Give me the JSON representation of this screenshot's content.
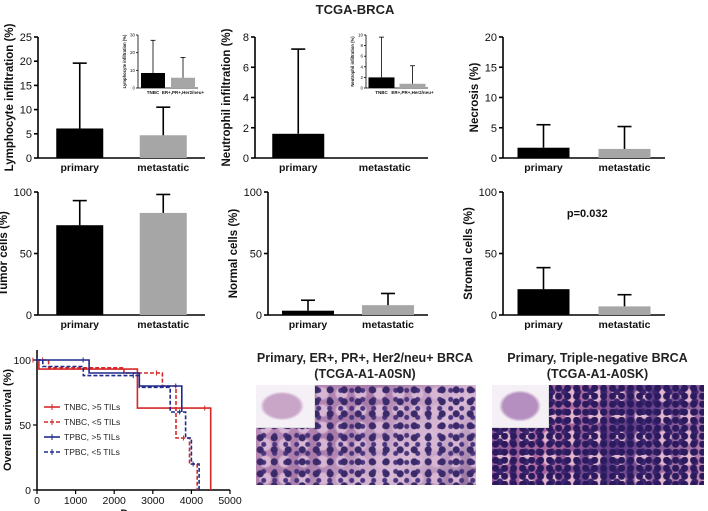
{
  "figure_title": "TCGA-BRCA",
  "chart_data": [
    {
      "type": "bar",
      "title": "",
      "ylabel": "Lymphocyte infiltration (%)",
      "xlabel": "",
      "categories": [
        "primary",
        "metastatic"
      ],
      "values": [
        6.1,
        4.7
      ],
      "errors": [
        13.5,
        5.8
      ],
      "colors": [
        "#000000",
        "#a6a6a6"
      ],
      "ylim": [
        0,
        25
      ],
      "yticks": [
        0,
        5,
        10,
        15,
        20,
        25
      ],
      "inset": {
        "type": "bar",
        "ylabel": "Lymphocyte infiltration (%)",
        "categories": [
          "TNBC",
          "ER+,PR+,Her2/neu+"
        ],
        "values": [
          8.5,
          5.8
        ],
        "errors": [
          18.5,
          11.5
        ],
        "colors": [
          "#000000",
          "#a6a6a6"
        ],
        "ylim": [
          0,
          30
        ],
        "yticks": [
          0,
          10,
          20,
          30
        ]
      }
    },
    {
      "type": "bar",
      "title": "",
      "ylabel": "Neutrophil infiltration (%)",
      "xlabel": "",
      "categories": [
        "primary",
        "metastatic"
      ],
      "values": [
        1.6,
        0
      ],
      "errors": [
        5.6,
        0
      ],
      "colors": [
        "#000000",
        "#a6a6a6"
      ],
      "ylim": [
        0,
        8
      ],
      "yticks": [
        0,
        2,
        4,
        6,
        8
      ],
      "inset": {
        "type": "bar",
        "ylabel": "Neutrophil infiltration (%)",
        "categories": [
          "TNBC",
          "ER+,PR+,Her2/neu+"
        ],
        "values": [
          2.0,
          0.8
        ],
        "errors": [
          7.6,
          3.4
        ],
        "colors": [
          "#000000",
          "#a6a6a6"
        ],
        "ylim": [
          0,
          10
        ],
        "yticks": [
          0,
          2,
          4,
          6,
          8,
          10
        ]
      }
    },
    {
      "type": "bar",
      "title": "",
      "ylabel": "Necrosis (%)",
      "xlabel": "",
      "categories": [
        "primary",
        "metastatic"
      ],
      "values": [
        1.7,
        1.5
      ],
      "errors": [
        3.8,
        3.7
      ],
      "colors": [
        "#000000",
        "#a6a6a6"
      ],
      "ylim": [
        0,
        20
      ],
      "yticks": [
        0,
        5,
        10,
        15,
        20
      ]
    },
    {
      "type": "bar",
      "title": "",
      "ylabel": "Tumor cells (%)",
      "xlabel": "",
      "categories": [
        "primary",
        "metastatic"
      ],
      "values": [
        73,
        83
      ],
      "errors": [
        20,
        15
      ],
      "colors": [
        "#000000",
        "#a6a6a6"
      ],
      "ylim": [
        0,
        100
      ],
      "yticks": [
        0,
        50,
        100
      ]
    },
    {
      "type": "bar",
      "title": "",
      "ylabel": "Normal cells (%)",
      "xlabel": "",
      "categories": [
        "primary",
        "metastatic"
      ],
      "values": [
        3.5,
        8
      ],
      "errors": [
        8.5,
        9.5
      ],
      "colors": [
        "#000000",
        "#a6a6a6"
      ],
      "ylim": [
        0,
        100
      ],
      "yticks": [
        0,
        50,
        100
      ]
    },
    {
      "type": "bar",
      "title": "",
      "ylabel": "Stromal cells (%)",
      "xlabel": "",
      "categories": [
        "primary",
        "metastatic"
      ],
      "values": [
        21,
        7
      ],
      "errors": [
        17.5,
        9.5
      ],
      "colors": [
        "#000000",
        "#a6a6a6"
      ],
      "ylim": [
        0,
        100
      ],
      "yticks": [
        0,
        50,
        100
      ],
      "annotation": "p=0.032"
    },
    {
      "type": "line",
      "title": "",
      "xlabel": "Days",
      "ylabel": "Overall survival (%)",
      "xlim": [
        0,
        5000
      ],
      "xticks": [
        0,
        1000,
        2000,
        3000,
        4000,
        5000
      ],
      "ylim": [
        0,
        100
      ],
      "yticks": [
        0,
        50,
        100
      ],
      "legend": "left",
      "series": [
        {
          "name": "TNBC, >5 TILs",
          "color": "#d62828",
          "dash": false,
          "x": [
            0,
            50,
            50,
            2600,
            2600,
            4500,
            4500
          ],
          "y": [
            100,
            100,
            93,
            93,
            63,
            63,
            0
          ]
        },
        {
          "name": "TNBC, <5 TILs",
          "color": "#d62828",
          "dash": true,
          "x": [
            0,
            300,
            300,
            2250,
            2250,
            3250,
            3250,
            3600,
            3600,
            3950,
            3950,
            4150,
            4150
          ],
          "y": [
            100,
            100,
            94,
            94,
            90,
            90,
            80,
            80,
            40,
            40,
            20,
            20,
            0
          ]
        },
        {
          "name": "TPBC, >5 TILs",
          "color": "#1f2a8c",
          "dash": false,
          "x": [
            0,
            1350,
            1350,
            2650,
            2650,
            3750,
            3750
          ],
          "y": [
            100,
            100,
            90,
            90,
            80,
            80,
            60
          ]
        },
        {
          "name": "TPBC, <5 TILs",
          "color": "#1f2a8c",
          "dash": true,
          "x": [
            0,
            150,
            150,
            1200,
            1200,
            2650,
            2650,
            3450,
            3450,
            3850,
            3850,
            4000,
            4000,
            4200,
            4200
          ],
          "y": [
            100,
            100,
            95,
            95,
            88,
            88,
            79,
            79,
            60,
            60,
            40,
            40,
            20,
            20,
            0
          ]
        }
      ]
    }
  ],
  "histology": [
    {
      "title_line1": "Primary, ER+, PR+, Her2/neu+ BRCA",
      "title_line2": "(TCGA-A1-A0SN)"
    },
    {
      "title_line1": "Primary, Triple-negative BRCA",
      "title_line2": "(TCGA-A1-A0SK)"
    }
  ]
}
